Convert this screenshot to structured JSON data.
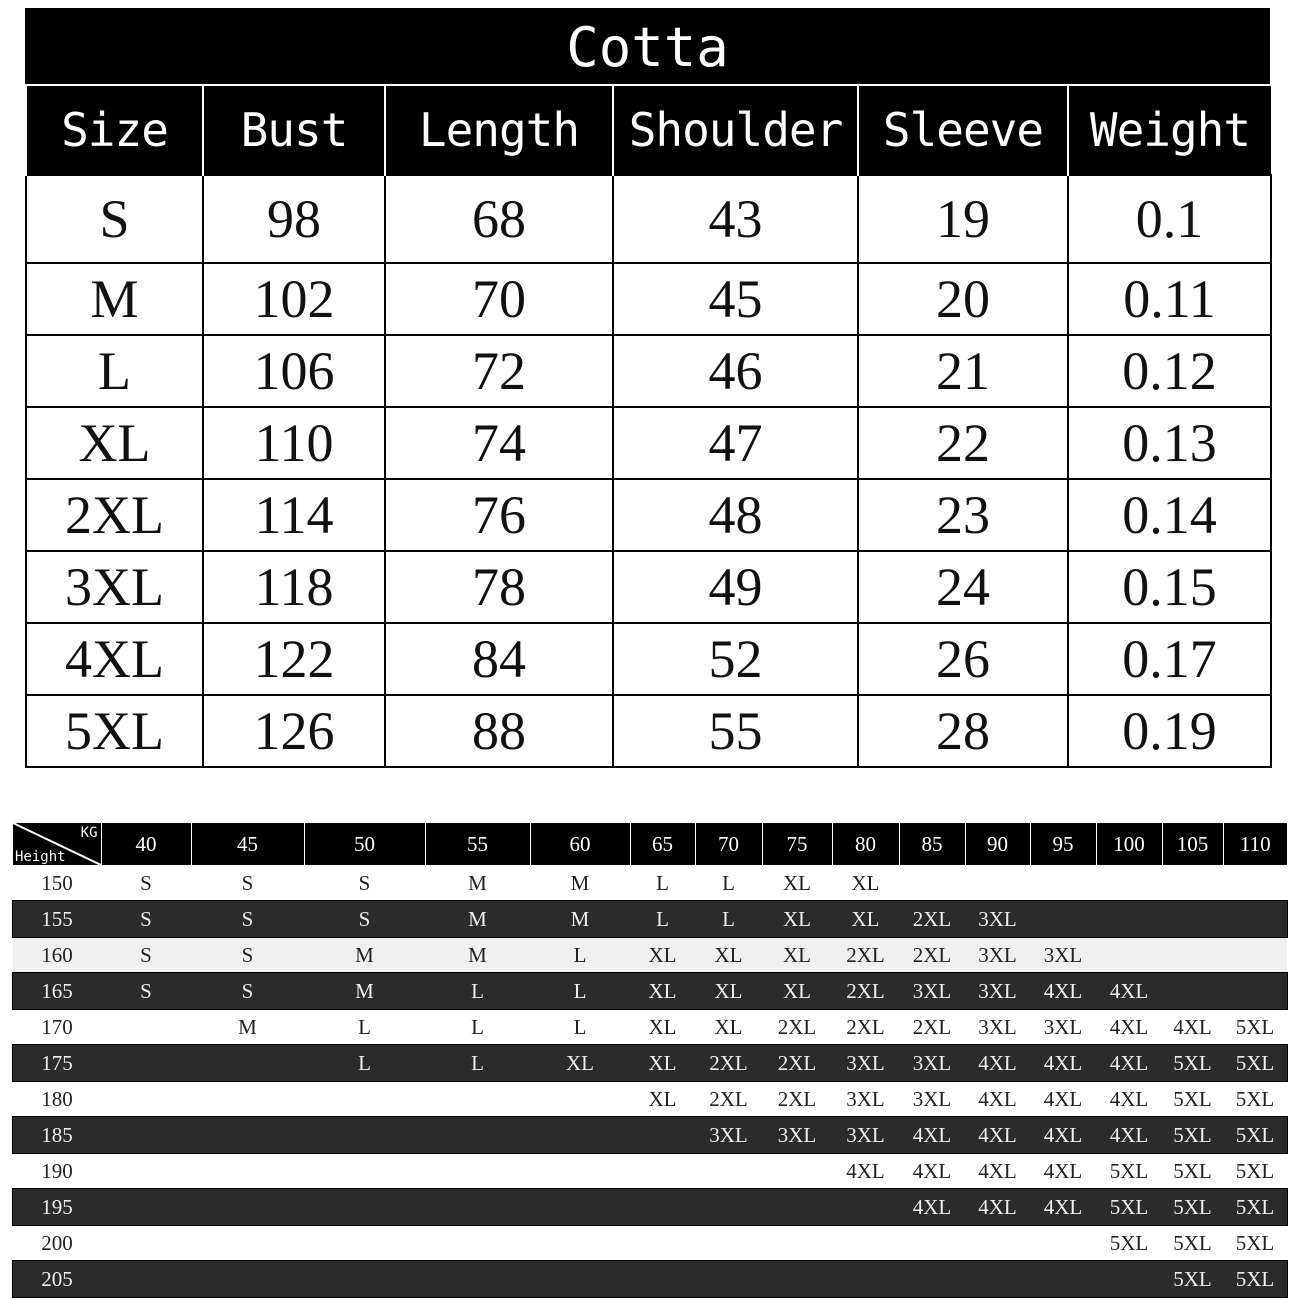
{
  "size_table": {
    "title": "Cotta",
    "headers": [
      "Size",
      "Bust",
      "Length",
      "Shoulder",
      "Sleeve",
      "Weight"
    ],
    "rows": [
      [
        "S",
        "98",
        "68",
        "43",
        "19",
        "0.1"
      ],
      [
        "M",
        "102",
        "70",
        "45",
        "20",
        "0.11"
      ],
      [
        "L",
        "106",
        "72",
        "46",
        "21",
        "0.12"
      ],
      [
        "XL",
        "110",
        "74",
        "47",
        "22",
        "0.13"
      ],
      [
        "2XL",
        "114",
        "76",
        "48",
        "23",
        "0.14"
      ],
      [
        "3XL",
        "118",
        "78",
        "49",
        "24",
        "0.15"
      ],
      [
        "4XL",
        "122",
        "84",
        "52",
        "26",
        "0.17"
      ],
      [
        "5XL",
        "126",
        "88",
        "55",
        "28",
        "0.19"
      ]
    ]
  },
  "fit_table": {
    "corner_top": "KG",
    "corner_bottom": "Height",
    "weights": [
      "40",
      "45",
      "50",
      "55",
      "60",
      "65",
      "70",
      "75",
      "80",
      "85",
      "90",
      "95",
      "100",
      "105",
      "110"
    ],
    "rows": [
      {
        "height": "150",
        "sizes": [
          "S",
          "S",
          "S",
          "M",
          "M",
          "L",
          "L",
          "XL",
          "XL",
          "",
          "",
          "",
          "",
          "",
          ""
        ]
      },
      {
        "height": "155",
        "sizes": [
          "S",
          "S",
          "S",
          "M",
          "M",
          "L",
          "L",
          "XL",
          "XL",
          "2XL",
          "3XL",
          "",
          "",
          "",
          ""
        ]
      },
      {
        "height": "160",
        "sizes": [
          "S",
          "S",
          "M",
          "M",
          "L",
          "XL",
          "XL",
          "XL",
          "2XL",
          "2XL",
          "3XL",
          "3XL",
          "",
          "",
          ""
        ]
      },
      {
        "height": "165",
        "sizes": [
          "S",
          "S",
          "M",
          "L",
          "L",
          "XL",
          "XL",
          "XL",
          "2XL",
          "3XL",
          "3XL",
          "4XL",
          "4XL",
          "",
          ""
        ]
      },
      {
        "height": "170",
        "sizes": [
          "",
          "M",
          "L",
          "L",
          "L",
          "XL",
          "XL",
          "2XL",
          "2XL",
          "2XL",
          "3XL",
          "3XL",
          "4XL",
          "4XL",
          "5XL"
        ]
      },
      {
        "height": "175",
        "sizes": [
          "",
          "",
          "L",
          "L",
          "XL",
          "XL",
          "2XL",
          "2XL",
          "3XL",
          "3XL",
          "4XL",
          "4XL",
          "4XL",
          "5XL",
          "5XL"
        ]
      },
      {
        "height": "180",
        "sizes": [
          "",
          "",
          "",
          "",
          "",
          "XL",
          "2XL",
          "2XL",
          "3XL",
          "3XL",
          "4XL",
          "4XL",
          "4XL",
          "5XL",
          "5XL"
        ]
      },
      {
        "height": "185",
        "sizes": [
          "",
          "",
          "",
          "",
          "",
          "",
          "3XL",
          "3XL",
          "3XL",
          "4XL",
          "4XL",
          "4XL",
          "4XL",
          "5XL",
          "5XL"
        ]
      },
      {
        "height": "190",
        "sizes": [
          "",
          "",
          "",
          "",
          "",
          "",
          "",
          "",
          "4XL",
          "4XL",
          "4XL",
          "4XL",
          "5XL",
          "5XL",
          "5XL"
        ]
      },
      {
        "height": "195",
        "sizes": [
          "",
          "",
          "",
          "",
          "",
          "",
          "",
          "",
          "",
          "4XL",
          "4XL",
          "4XL",
          "5XL",
          "5XL",
          "5XL"
        ]
      },
      {
        "height": "200",
        "sizes": [
          "",
          "",
          "",
          "",
          "",
          "",
          "",
          "",
          "",
          "",
          "",
          "",
          "5XL",
          "5XL",
          "5XL"
        ]
      },
      {
        "height": "205",
        "sizes": [
          "",
          "",
          "",
          "",
          "",
          "",
          "",
          "",
          "",
          "",
          "",
          "",
          "",
          "5XL",
          "5XL"
        ]
      }
    ]
  }
}
